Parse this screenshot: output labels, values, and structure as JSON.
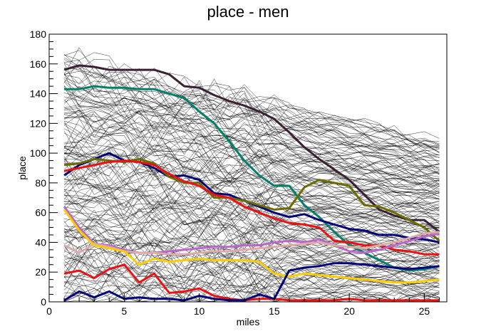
{
  "chart_data": {
    "type": "line",
    "title": "place - men",
    "xlabel": "miles",
    "ylabel": "place",
    "xlim": [
      0,
      26.5
    ],
    "ylim": [
      0,
      180
    ],
    "x_ticks": [
      0,
      5,
      10,
      15,
      20,
      25
    ],
    "y_ticks": [
      0,
      20,
      40,
      60,
      80,
      100,
      120,
      140,
      160,
      180
    ],
    "background_runner_count": 164,
    "background_color": "#000000",
    "highlighted_series": [
      {
        "color": "#3b1f33",
        "x": [
          1,
          2,
          3,
          4,
          5,
          6,
          7,
          8,
          9,
          10,
          11,
          12,
          13,
          14,
          15,
          16,
          17,
          18,
          19,
          20,
          21,
          22,
          23,
          24,
          25,
          26
        ],
        "values": [
          156,
          159,
          158,
          156,
          156,
          156,
          156,
          153,
          145,
          144,
          139,
          135,
          132,
          128,
          123,
          114,
          104,
          96,
          89,
          82,
          72,
          62,
          58,
          55,
          55,
          47
        ]
      },
      {
        "color": "#00806a",
        "x": [
          1,
          2,
          3,
          4,
          5,
          6,
          7,
          8,
          9,
          10,
          11,
          12,
          13,
          14,
          15,
          16,
          17,
          18,
          19,
          20,
          21,
          22,
          23,
          24,
          25,
          26
        ],
        "values": [
          143,
          143,
          145,
          144,
          144,
          143,
          143,
          140,
          137,
          128,
          120,
          108,
          95,
          85,
          78,
          78,
          65,
          57,
          47,
          38,
          33,
          28,
          23,
          21,
          22,
          24
        ]
      },
      {
        "color": "#00007a",
        "x": [
          1,
          2,
          3,
          4,
          5,
          6,
          7,
          8,
          9,
          10,
          11,
          12,
          13,
          14,
          15,
          16,
          17,
          18,
          19,
          20,
          21,
          22,
          23,
          24,
          25,
          26
        ],
        "values": [
          85,
          92,
          96,
          100,
          95,
          94,
          90,
          84,
          85,
          82,
          73,
          72,
          68,
          64,
          60,
          57,
          59,
          55,
          52,
          49,
          48,
          45,
          45,
          43,
          42,
          40
        ]
      },
      {
        "color": "#6b6b00",
        "x": [
          1,
          2,
          3,
          4,
          5,
          6,
          7,
          8,
          9,
          10,
          11,
          12,
          13,
          14,
          15,
          16,
          17,
          18,
          19,
          20,
          21,
          22,
          23,
          24,
          25,
          26
        ],
        "values": [
          92,
          93,
          96,
          95,
          94,
          96,
          93,
          84,
          80,
          80,
          70,
          70,
          68,
          65,
          62,
          63,
          77,
          82,
          80,
          78,
          65,
          64,
          60,
          55,
          50,
          41
        ]
      },
      {
        "color": "#ee1111",
        "x": [
          1,
          2,
          3,
          4,
          5,
          6,
          7,
          8,
          9,
          10,
          11,
          12,
          13,
          14,
          15,
          16,
          17,
          18,
          19,
          20,
          21,
          22,
          23,
          24,
          25,
          26
        ],
        "values": [
          88,
          90,
          92,
          94,
          95,
          94,
          92,
          86,
          81,
          78,
          72,
          70,
          64,
          60,
          56,
          53,
          52,
          50,
          41,
          40,
          38,
          38,
          35,
          34,
          32,
          32
        ]
      },
      {
        "color": "#bb66cc",
        "x": [
          1,
          2,
          3,
          4,
          5,
          6,
          7,
          8,
          9,
          10,
          11,
          12,
          13,
          14,
          15,
          16,
          17,
          18,
          19,
          20,
          21,
          22,
          23,
          24,
          25,
          26
        ],
        "values": [
          64,
          50,
          39,
          38,
          35,
          33,
          33,
          34,
          35,
          36,
          37,
          37,
          38,
          38,
          40,
          41,
          40,
          42,
          38,
          34,
          33,
          35,
          38,
          41,
          44,
          46
        ]
      },
      {
        "color": "#ddaaaa",
        "x": [
          1,
          2,
          3,
          4,
          5,
          6,
          7,
          8,
          9,
          10,
          11,
          12,
          13,
          14,
          15,
          16,
          17,
          18,
          19,
          20,
          21,
          22,
          23,
          24,
          25,
          26
        ],
        "values": [
          38,
          33,
          39,
          37,
          34,
          33,
          33,
          32,
          32,
          33,
          34,
          34,
          35,
          36,
          37,
          38,
          39,
          40,
          38,
          37,
          36,
          38,
          40,
          43,
          46,
          47
        ]
      },
      {
        "color": "#ffcc00",
        "x": [
          1,
          2,
          3,
          4,
          5,
          6,
          7,
          8,
          9,
          10,
          11,
          12,
          13,
          14,
          15,
          16,
          17,
          18,
          19,
          20,
          21,
          22,
          23,
          24,
          25,
          26
        ],
        "values": [
          62,
          48,
          38,
          36,
          34,
          25,
          29,
          27,
          28,
          29,
          28,
          28,
          28,
          27,
          19,
          17,
          19,
          18,
          17,
          16,
          15,
          14,
          13,
          13,
          14,
          15
        ]
      },
      {
        "color": "#ee1111",
        "x": [
          1,
          2,
          3,
          4,
          5,
          6,
          7,
          8,
          9,
          10,
          11,
          12,
          13,
          14,
          15,
          16,
          17,
          18,
          19,
          20,
          21,
          22,
          23,
          24,
          25,
          26
        ],
        "values": [
          19,
          21,
          16,
          22,
          25,
          13,
          19,
          6,
          7,
          9,
          4,
          2,
          1,
          2,
          2,
          1,
          1,
          1,
          1,
          2,
          1,
          1,
          1,
          1,
          1,
          1
        ]
      },
      {
        "color": "#00007a",
        "x": [
          1,
          2,
          3,
          4,
          5,
          6,
          7,
          8,
          9,
          10,
          11,
          12,
          13,
          14,
          15,
          16,
          17,
          18,
          19,
          20,
          21,
          22,
          23,
          24,
          25,
          26
        ],
        "values": [
          1,
          7,
          3,
          7,
          2,
          3,
          2,
          2,
          1,
          4,
          2,
          1,
          1,
          5,
          2,
          21,
          23,
          24,
          26,
          26,
          25,
          24,
          23,
          22,
          23,
          24
        ]
      }
    ]
  }
}
